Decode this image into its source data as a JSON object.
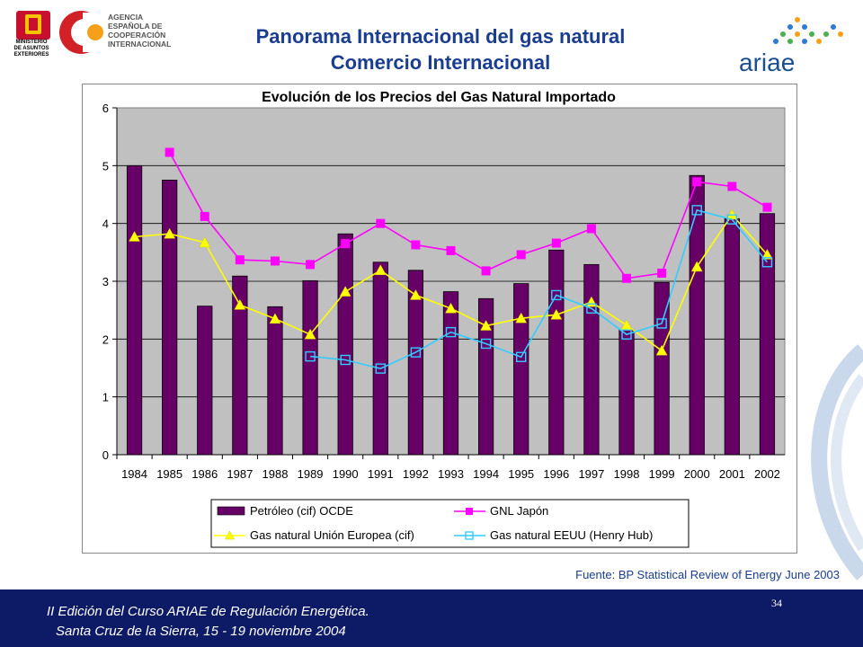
{
  "header": {
    "title_line1": "Panorama Internacional del gas natural",
    "title_line2": "Comercio Internacional",
    "agency_lines": [
      "AGENCIA",
      "ESPAÑOLA DE",
      "COOPERACIÓN",
      "INTERNACIONAL"
    ],
    "ministry_lines": [
      "MINISTERIO",
      "DE ASUNTOS",
      "EXTERIORES"
    ],
    "ariae_logo": "ariae"
  },
  "source": "Fuente: BP Statistical Review of Energy June 2003",
  "footer": {
    "line1": "II Edición del Curso ARIAE de Regulación Energética.",
    "line2": "Santa Cruz de la Sierra, 15 - 19 noviembre 2004",
    "page": "34"
  },
  "colors": {
    "bar": "#660066",
    "gnl": "#ff00ff",
    "ue": "#ffff00",
    "eeuu": "#33ccff",
    "plot_bg": "#c0c0c0",
    "footer_bg": "#0d1a66",
    "title": "#1a3d8f"
  },
  "chart_data": {
    "type": "bar",
    "title": "Evolución de los Precios del Gas Natural Importado",
    "categories": [
      "1984",
      "1985",
      "1986",
      "1987",
      "1988",
      "1989",
      "1990",
      "1991",
      "1992",
      "1993",
      "1994",
      "1995",
      "1996",
      "1997",
      "1998",
      "1999",
      "2000",
      "2001",
      "2002"
    ],
    "ylim": [
      0,
      6
    ],
    "yticks": [
      0,
      1,
      2,
      3,
      4,
      5,
      6
    ],
    "grid": true,
    "legend_position": "bottom",
    "bars": {
      "name": "Petróleo (cif) OCDE",
      "values": [
        5.0,
        4.75,
        2.57,
        3.09,
        2.56,
        3.01,
        3.82,
        3.33,
        3.19,
        2.82,
        2.7,
        2.96,
        3.54,
        3.29,
        2.16,
        2.98,
        4.83,
        4.08,
        4.17
      ]
    },
    "series": [
      {
        "name": "GNL Japón",
        "marker": "square",
        "values": [
          null,
          5.23,
          4.12,
          3.37,
          3.35,
          3.29,
          3.65,
          4.0,
          3.63,
          3.53,
          3.18,
          3.46,
          3.66,
          3.91,
          3.05,
          3.14,
          4.72,
          4.64,
          4.28
        ]
      },
      {
        "name": "Gas natural Unión Europea (cif)",
        "marker": "triangle",
        "values": [
          3.77,
          3.82,
          3.67,
          2.59,
          2.35,
          2.08,
          2.82,
          3.19,
          2.76,
          2.53,
          2.23,
          2.36,
          2.42,
          2.64,
          2.24,
          1.8,
          3.25,
          4.15,
          3.46
        ]
      },
      {
        "name": "Gas natural EEUU (Henry Hub)",
        "marker": "open-square",
        "values": [
          null,
          null,
          null,
          null,
          null,
          1.7,
          1.64,
          1.49,
          1.77,
          2.12,
          1.92,
          1.69,
          2.76,
          2.53,
          2.08,
          2.27,
          4.23,
          4.07,
          3.33
        ]
      }
    ]
  }
}
